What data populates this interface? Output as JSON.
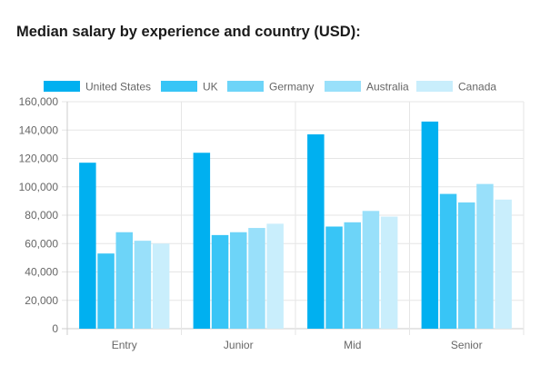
{
  "page": {
    "title": "Median salary by experience and country (USD):"
  },
  "chart_data": {
    "type": "bar",
    "title": "Median salary by experience and country (USD):",
    "xlabel": "",
    "ylabel": "",
    "categories": [
      "Entry",
      "Junior",
      "Mid",
      "Senior"
    ],
    "ylim": [
      0,
      160000
    ],
    "y_ticks": [
      0,
      20000,
      40000,
      60000,
      80000,
      100000,
      120000,
      140000,
      160000
    ],
    "y_tick_labels": [
      "0",
      "20,000",
      "40,000",
      "60,000",
      "80,000",
      "100,000",
      "120,000",
      "140,000",
      "160,000"
    ],
    "grid": true,
    "legend_position": "top",
    "series": [
      {
        "name": "United States",
        "color": "#00b0f0",
        "values": [
          117000,
          124000,
          137000,
          146000
        ]
      },
      {
        "name": "UK",
        "color": "#38c5f6",
        "values": [
          53000,
          66000,
          72000,
          95000
        ]
      },
      {
        "name": "Germany",
        "color": "#6dd4f8",
        "values": [
          68000,
          68000,
          75000,
          89000
        ]
      },
      {
        "name": "Australia",
        "color": "#99e0fa",
        "values": [
          62000,
          71000,
          83000,
          102000
        ]
      },
      {
        "name": "Canada",
        "color": "#c9eefc",
        "values": [
          60000,
          74000,
          79000,
          91000
        ]
      }
    ]
  }
}
